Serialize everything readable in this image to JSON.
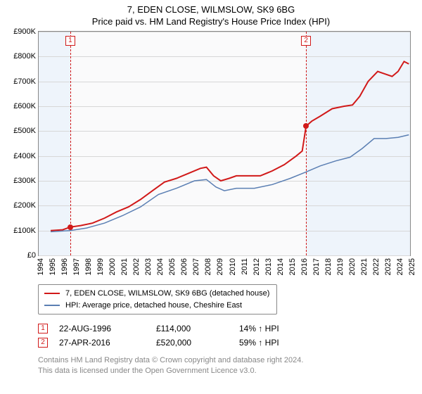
{
  "title_line1": "7, EDEN CLOSE, WILMSLOW, SK9 6BG",
  "title_line2": "Price paid vs. HM Land Registry's House Price Index (HPI)",
  "chart": {
    "type": "line",
    "background_color": "#fafafb",
    "shade_color": "#eef4fb",
    "grid_color": "#d7d7d7",
    "border_color": "#888888",
    "font_size_axis": 11,
    "x": {
      "min": 1994,
      "max": 2025,
      "tick_step": 1
    },
    "y": {
      "min": 0,
      "max": 900,
      "tick_step": 100,
      "prefix": "£",
      "suffix": "K"
    },
    "series": [
      {
        "name": "price_paid",
        "color": "#d11919",
        "width": 2,
        "data": [
          [
            1995.0,
            100
          ],
          [
            1996.0,
            103
          ],
          [
            1996.64,
            114
          ],
          [
            1997.5,
            120
          ],
          [
            1998.5,
            130
          ],
          [
            1999.5,
            150
          ],
          [
            2000.5,
            175
          ],
          [
            2001.5,
            195
          ],
          [
            2002.5,
            225
          ],
          [
            2003.5,
            260
          ],
          [
            2004.5,
            295
          ],
          [
            2005.5,
            310
          ],
          [
            2006.5,
            330
          ],
          [
            2007.5,
            350
          ],
          [
            2008.0,
            355
          ],
          [
            2008.6,
            320
          ],
          [
            2009.2,
            300
          ],
          [
            2009.9,
            310
          ],
          [
            2010.5,
            320
          ],
          [
            2011.5,
            320
          ],
          [
            2012.5,
            320
          ],
          [
            2013.5,
            340
          ],
          [
            2014.5,
            365
          ],
          [
            2015.5,
            400
          ],
          [
            2016.0,
            420
          ],
          [
            2016.32,
            520
          ],
          [
            2016.8,
            540
          ],
          [
            2017.5,
            560
          ],
          [
            2018.5,
            590
          ],
          [
            2019.5,
            600
          ],
          [
            2020.2,
            605
          ],
          [
            2020.8,
            640
          ],
          [
            2021.5,
            700
          ],
          [
            2022.3,
            740
          ],
          [
            2022.9,
            730
          ],
          [
            2023.5,
            720
          ],
          [
            2024.0,
            740
          ],
          [
            2024.5,
            780
          ],
          [
            2024.9,
            770
          ]
        ]
      },
      {
        "name": "hpi",
        "color": "#5b7fb3",
        "width": 1.5,
        "data": [
          [
            1995.0,
            95
          ],
          [
            1996.6,
            100
          ],
          [
            1998.0,
            110
          ],
          [
            1999.5,
            130
          ],
          [
            2001.0,
            160
          ],
          [
            2002.5,
            195
          ],
          [
            2004.0,
            245
          ],
          [
            2005.5,
            270
          ],
          [
            2007.0,
            300
          ],
          [
            2008.0,
            305
          ],
          [
            2008.8,
            275
          ],
          [
            2009.5,
            260
          ],
          [
            2010.5,
            270
          ],
          [
            2012.0,
            270
          ],
          [
            2013.5,
            285
          ],
          [
            2015.0,
            310
          ],
          [
            2016.3,
            335
          ],
          [
            2017.5,
            360
          ],
          [
            2018.8,
            380
          ],
          [
            2020.0,
            395
          ],
          [
            2021.0,
            430
          ],
          [
            2022.0,
            470
          ],
          [
            2023.0,
            470
          ],
          [
            2024.0,
            475
          ],
          [
            2024.9,
            485
          ]
        ]
      }
    ],
    "sale_markers": [
      {
        "x": 1996.64,
        "y": 114,
        "color": "#d11919"
      },
      {
        "x": 2016.32,
        "y": 520,
        "color": "#d11919"
      }
    ],
    "event_lines": [
      {
        "x": 1996.64,
        "label": "1",
        "color": "#d11919"
      },
      {
        "x": 2016.32,
        "label": "2",
        "color": "#d11919"
      }
    ],
    "shaded_ranges": [
      {
        "from": 1994,
        "to": 1996.64
      },
      {
        "from": 2016.32,
        "to": 2025
      }
    ]
  },
  "legend": [
    {
      "color": "#d11919",
      "label": "7, EDEN CLOSE, WILMSLOW, SK9 6BG (detached house)"
    },
    {
      "color": "#5b7fb3",
      "label": "HPI: Average price, detached house, Cheshire East"
    }
  ],
  "events": [
    {
      "n": "1",
      "color": "#d11919",
      "date": "22-AUG-1996",
      "price": "£114,000",
      "delta": "14% ↑ HPI"
    },
    {
      "n": "2",
      "color": "#d11919",
      "date": "27-APR-2016",
      "price": "£520,000",
      "delta": "59% ↑ HPI"
    }
  ],
  "footer_line1": "Contains HM Land Registry data © Crown copyright and database right 2024.",
  "footer_line2": "This data is licensed under the Open Government Licence v3.0."
}
